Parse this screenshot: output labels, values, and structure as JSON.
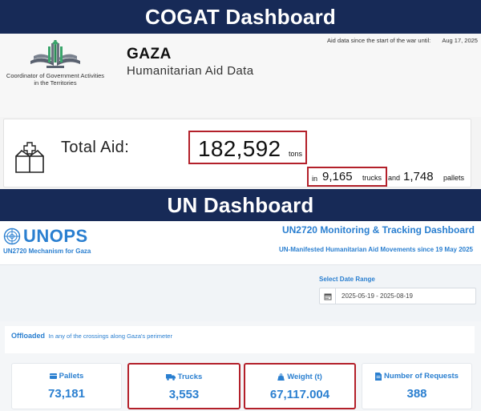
{
  "banners": {
    "cogat": "COGAT Dashboard",
    "un": "UN Dashboard"
  },
  "cogat": {
    "aid_since_label": "Aid data since the start of the war until:",
    "aid_since_date": "Aug 17, 2025",
    "org_name_line1": "Coordinator of Government Activities",
    "org_name_line2": "in the Territories",
    "region": "GAZA",
    "subtitle": "Humanitarian Aid Data",
    "total_label": "Total Aid:",
    "tons_value": "182,592",
    "tons_unit": "tons",
    "in_word": "in",
    "trucks_value": "9,165",
    "trucks_unit": "trucks",
    "and_word": "and",
    "pallets_value": "1,748",
    "pallets_unit": "pallets"
  },
  "un": {
    "logo_text": "UNOPS",
    "mechanism": "UN2720 Mechanism for Gaza",
    "title": "UN2720 Monitoring & Tracking Dashboard",
    "subtitle": "UN-Manifested Humanitarian Aid Movements since 19 May 2025",
    "date_range_label": "Select Date Range",
    "date_range_value": "2025-05-19 - 2025-08-19",
    "offloaded_label": "Offloaded",
    "offloaded_sub": "In any of the crossings along Gaza's perimeter",
    "stats": [
      {
        "label": "Pallets",
        "value": "73,181",
        "icon": "pallet-icon"
      },
      {
        "label": "Trucks",
        "value": "3,553",
        "icon": "truck-icon"
      },
      {
        "label": "Weight (t)",
        "value": "67,117.004",
        "icon": "weight-icon"
      },
      {
        "label": "Number of Requests",
        "value": "388",
        "icon": "document-icon"
      }
    ]
  },
  "colors": {
    "banner": "#172a57",
    "accent_blue": "#2a7fd0",
    "highlight_red": "#b3202a"
  }
}
